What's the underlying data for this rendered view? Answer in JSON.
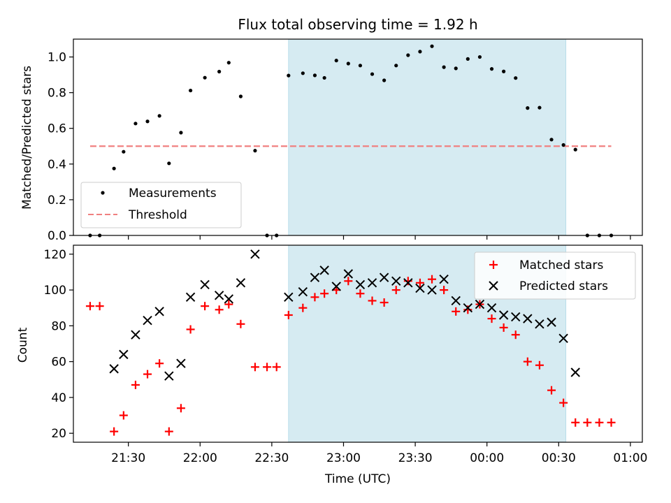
{
  "chart_data": [
    {
      "type": "scatter",
      "title": "Flux total observing time = 1.92 h",
      "xlabel": "",
      "ylabel": "Matched/Predicted stars",
      "ylim": [
        0,
        1.1
      ],
      "yticks": [
        "0.0",
        "0.2",
        "0.4",
        "0.6",
        "0.8",
        "1.0"
      ],
      "x_range": [
        "21:07",
        "01:05"
      ],
      "legend_position": "lower-left",
      "shaded_span": {
        "from": "22:37",
        "to": "00:33",
        "color": "#add8e6"
      },
      "series": [
        {
          "name": "Measurements",
          "marker": "dot",
          "color": "#000000",
          "points": [
            [
              "21:14",
              0.0
            ],
            [
              "21:18",
              0.0
            ],
            [
              "21:24",
              0.375
            ],
            [
              "21:28",
              0.469
            ],
            [
              "21:33",
              0.627
            ],
            [
              "21:38",
              0.639
            ],
            [
              "21:43",
              0.67
            ],
            [
              "21:47",
              0.404
            ],
            [
              "21:52",
              0.576
            ],
            [
              "21:56",
              0.812
            ],
            [
              "22:02",
              0.884
            ],
            [
              "22:08",
              0.918
            ],
            [
              "22:12",
              0.968
            ],
            [
              "22:17",
              0.779
            ],
            [
              "22:23",
              0.475
            ],
            [
              "22:28",
              0.0
            ],
            [
              "22:32",
              0.0
            ],
            [
              "22:37",
              0.896
            ],
            [
              "22:43",
              0.909
            ],
            [
              "22:48",
              0.897
            ],
            [
              "22:52",
              0.883
            ],
            [
              "22:57",
              0.98
            ],
            [
              "23:02",
              0.963
            ],
            [
              "23:07",
              0.952
            ],
            [
              "23:12",
              0.904
            ],
            [
              "23:17",
              0.869
            ],
            [
              "23:22",
              0.952
            ],
            [
              "23:27",
              1.01
            ],
            [
              "23:32",
              1.03
            ],
            [
              "23:37",
              1.06
            ],
            [
              "23:42",
              0.943
            ],
            [
              "23:47",
              0.936
            ],
            [
              "23:52",
              0.989
            ],
            [
              "23:57",
              1.0
            ],
            [
              "00:02",
              0.933
            ],
            [
              "00:07",
              0.919
            ],
            [
              "00:12",
              0.882
            ],
            [
              "00:17",
              0.714
            ],
            [
              "00:22",
              0.716
            ],
            [
              "00:27",
              0.537
            ],
            [
              "00:32",
              0.507
            ],
            [
              "00:37",
              0.481
            ],
            [
              "00:42",
              0.0
            ],
            [
              "00:47",
              0.0
            ],
            [
              "00:52",
              0.0
            ]
          ]
        },
        {
          "name": "Threshold",
          "line": "dashed",
          "color": "#f08080",
          "points": [
            [
              "21:14",
              0.5
            ],
            [
              "00:52",
              0.5
            ]
          ]
        }
      ]
    },
    {
      "type": "scatter",
      "title": "",
      "xlabel": "Time (UTC)",
      "ylabel": "Count",
      "ylim": [
        15,
        125
      ],
      "yticks": [
        "20",
        "40",
        "60",
        "80",
        "100",
        "120"
      ],
      "xticks": [
        "21:30",
        "22:00",
        "22:30",
        "23:00",
        "23:30",
        "00:00",
        "00:30",
        "01:00"
      ],
      "x_range": [
        "21:07",
        "01:05"
      ],
      "legend_position": "upper-right",
      "shaded_span": {
        "from": "22:37",
        "to": "00:33",
        "color": "#add8e6"
      },
      "series": [
        {
          "name": "Matched stars",
          "marker": "plus",
          "color": "#ff0000",
          "points": [
            [
              "21:14",
              91
            ],
            [
              "21:18",
              91
            ],
            [
              "21:24",
              21
            ],
            [
              "21:28",
              30
            ],
            [
              "21:33",
              47
            ],
            [
              "21:38",
              53
            ],
            [
              "21:43",
              59
            ],
            [
              "21:47",
              21
            ],
            [
              "21:52",
              34
            ],
            [
              "21:56",
              78
            ],
            [
              "22:02",
              91
            ],
            [
              "22:08",
              89
            ],
            [
              "22:12",
              92
            ],
            [
              "22:17",
              81
            ],
            [
              "22:23",
              57
            ],
            [
              "22:28",
              57
            ],
            [
              "22:32",
              57
            ],
            [
              "22:37",
              86
            ],
            [
              "22:43",
              90
            ],
            [
              "22:48",
              96
            ],
            [
              "22:52",
              98
            ],
            [
              "22:57",
              100
            ],
            [
              "23:02",
              105
            ],
            [
              "23:07",
              98
            ],
            [
              "23:12",
              94
            ],
            [
              "23:17",
              93
            ],
            [
              "23:22",
              100
            ],
            [
              "23:27",
              105
            ],
            [
              "23:32",
              104
            ],
            [
              "23:37",
              106
            ],
            [
              "23:42",
              100
            ],
            [
              "23:47",
              88
            ],
            [
              "23:52",
              89
            ],
            [
              "23:57",
              92
            ],
            [
              "00:02",
              84
            ],
            [
              "00:07",
              79
            ],
            [
              "00:12",
              75
            ],
            [
              "00:17",
              60
            ],
            [
              "00:22",
              58
            ],
            [
              "00:27",
              44
            ],
            [
              "00:32",
              37
            ],
            [
              "00:37",
              26
            ],
            [
              "00:42",
              26
            ],
            [
              "00:47",
              26
            ],
            [
              "00:52",
              26
            ]
          ]
        },
        {
          "name": "Predicted stars",
          "marker": "x",
          "color": "#000000",
          "points": [
            [
              "21:24",
              56
            ],
            [
              "21:28",
              64
            ],
            [
              "21:33",
              75
            ],
            [
              "21:38",
              83
            ],
            [
              "21:43",
              88
            ],
            [
              "21:47",
              52
            ],
            [
              "21:52",
              59
            ],
            [
              "21:56",
              96
            ],
            [
              "22:02",
              103
            ],
            [
              "22:08",
              97
            ],
            [
              "22:12",
              95
            ],
            [
              "22:17",
              104
            ],
            [
              "22:23",
              120
            ],
            [
              "22:37",
              96
            ],
            [
              "22:43",
              99
            ],
            [
              "22:48",
              107
            ],
            [
              "22:52",
              111
            ],
            [
              "22:57",
              102
            ],
            [
              "23:02",
              109
            ],
            [
              "23:07",
              103
            ],
            [
              "23:12",
              104
            ],
            [
              "23:17",
              107
            ],
            [
              "23:22",
              105
            ],
            [
              "23:27",
              104
            ],
            [
              "23:32",
              101
            ],
            [
              "23:37",
              100
            ],
            [
              "23:42",
              106
            ],
            [
              "23:47",
              94
            ],
            [
              "23:52",
              90
            ],
            [
              "23:57",
              92
            ],
            [
              "00:02",
              90
            ],
            [
              "00:07",
              86
            ],
            [
              "00:12",
              85
            ],
            [
              "00:17",
              84
            ],
            [
              "00:22",
              81
            ],
            [
              "00:27",
              82
            ],
            [
              "00:32",
              73
            ],
            [
              "00:37",
              54
            ]
          ]
        }
      ]
    }
  ]
}
